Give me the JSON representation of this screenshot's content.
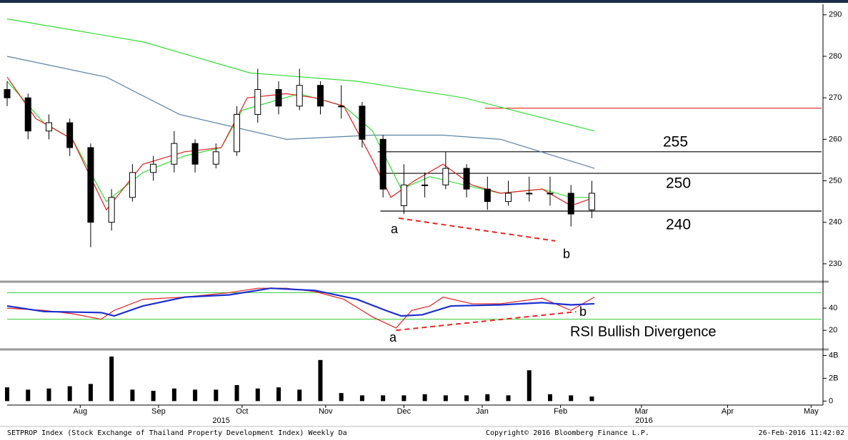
{
  "chart_data": [
    {
      "type": "candlestick",
      "x": [
        0,
        8,
        16,
        24,
        32,
        40,
        48,
        56,
        64,
        72,
        80,
        88,
        96,
        104,
        112,
        120,
        128,
        136,
        144,
        152,
        160,
        168,
        176,
        184,
        192,
        200,
        208,
        216,
        224
      ],
      "open": [
        272,
        270,
        262,
        264,
        258,
        240,
        246,
        252,
        254,
        259,
        254,
        257,
        266,
        272,
        268,
        273,
        268,
        268,
        260,
        244,
        249,
        249,
        253,
        248,
        245,
        247,
        247,
        247,
        243
      ],
      "high": [
        274,
        271,
        266,
        265,
        259,
        248,
        254,
        256,
        262,
        260,
        259,
        268,
        277,
        274,
        277,
        274,
        273,
        269,
        261,
        254,
        252,
        257,
        254,
        251,
        250,
        251,
        251,
        249,
        250
      ],
      "low": [
        268,
        260,
        260,
        256,
        234,
        238,
        245,
        250,
        252,
        252,
        253,
        256,
        264,
        266,
        267,
        266,
        265,
        258,
        246,
        242,
        246,
        248,
        246,
        243,
        244,
        245,
        244,
        239,
        241
      ],
      "close": [
        270,
        262,
        264,
        258,
        240,
        246,
        252,
        254,
        259,
        254,
        257,
        266,
        272,
        268,
        273,
        268,
        268,
        260,
        248,
        249,
        249,
        253,
        248,
        245,
        247,
        247,
        247,
        242,
        247
      ],
      "series": [
        {
          "color": "#33dd33",
          "x": [
            0,
            52,
            93,
            134,
            175,
            225
          ],
          "values": [
            289,
            283.5,
            276,
            274,
            270,
            262
          ]
        },
        {
          "color": "#5b82a8",
          "x": [
            0,
            38,
            66,
            107,
            140,
            167,
            189,
            225
          ],
          "values": [
            280,
            275,
            266,
            260,
            261,
            261,
            260,
            253
          ]
        },
        {
          "color": "#33dd33",
          "x": [
            0,
            14,
            25,
            38,
            52,
            68,
            82,
            90,
            112,
            129,
            140,
            151,
            162,
            175,
            189,
            205,
            216,
            225
          ],
          "values": [
            274,
            264,
            260,
            245,
            252,
            256,
            258,
            267,
            271,
            268,
            262,
            248,
            251,
            249,
            247,
            248,
            246,
            246
          ]
        },
        {
          "color": "#e02020",
          "x": [
            0,
            11,
            25,
            38,
            52,
            68,
            82,
            92,
            107,
            118,
            129,
            140,
            147,
            156,
            167,
            178,
            189,
            205,
            216,
            225
          ],
          "values": [
            275,
            265,
            260,
            243,
            254,
            257,
            258,
            270,
            271,
            270,
            268,
            255,
            246,
            250,
            254,
            249,
            247,
            248,
            244,
            246
          ]
        }
      ],
      "levels": [
        {
          "value": 267.5,
          "start": 183,
          "color": "#e02020"
        },
        {
          "value": 257,
          "start": 142,
          "color": "#000000"
        },
        {
          "value": 251.8,
          "start": 143,
          "color": "#000000"
        },
        {
          "value": 242.7,
          "start": 143,
          "color": "#000000"
        }
      ],
      "level_labels": [
        "255",
        "250",
        "240"
      ],
      "divergence": {
        "x": [
          150,
          210
        ],
        "values": [
          241,
          235.5
        ],
        "color": "#ee2222"
      },
      "point_labels": [
        "a",
        "b"
      ],
      "xlim": [
        0,
        312
      ],
      "ylim": [
        226.2,
        292.2
      ],
      "yticks": [
        230,
        240,
        250,
        260,
        270,
        280,
        290
      ]
    },
    {
      "type": "line",
      "series": [
        {
          "color": "#e02020",
          "x": [
            0,
            14,
            25,
            36,
            41,
            52,
            68,
            85,
            96,
            107,
            118,
            129,
            140,
            149,
            155,
            162,
            167,
            178,
            189,
            205,
            216,
            225
          ],
          "values": [
            40,
            38,
            35,
            30,
            38,
            48,
            50,
            54,
            58,
            58,
            55,
            48,
            32,
            22,
            38,
            42,
            50,
            44,
            44,
            49,
            38,
            50
          ]
        },
        {
          "color": "#1a2fd0",
          "x": [
            0,
            14,
            36,
            41,
            52,
            68,
            85,
            101,
            118,
            134,
            145,
            151,
            159,
            170,
            189,
            205,
            216,
            225
          ],
          "values": [
            42,
            37,
            36,
            33,
            42,
            50,
            52,
            58,
            56,
            48,
            38,
            33,
            34,
            42,
            43,
            45,
            43,
            44
          ]
        }
      ],
      "reference_lines": [
        30,
        54
      ],
      "reference_color": "#33cc33",
      "divergence": {
        "x": [
          149,
          218
        ],
        "values": [
          20,
          36.8
        ],
        "color": "#ee2222"
      },
      "point_labels": [
        "a",
        "b"
      ],
      "annotation": "RSI Bullish Divergence",
      "xlim": [
        0,
        312
      ],
      "ylim": [
        4,
        62
      ],
      "yticks": [
        20,
        40
      ]
    },
    {
      "type": "bar",
      "color": "#000000",
      "x": [
        0,
        8,
        16,
        24,
        32,
        40,
        48,
        56,
        64,
        72,
        80,
        88,
        96,
        104,
        112,
        120,
        128,
        136,
        144,
        152,
        160,
        168,
        176,
        184,
        192,
        200,
        208,
        216,
        224
      ],
      "values": [
        1.2,
        1.0,
        1.1,
        1.3,
        1.5,
        3.9,
        1.0,
        0.9,
        1.1,
        1.0,
        1.0,
        1.4,
        1.1,
        1.2,
        1.0,
        3.6,
        0.7,
        0.5,
        0.5,
        0.5,
        0.6,
        0.5,
        0.5,
        0.6,
        0.5,
        2.7,
        0.6,
        0.5,
        0.4
      ],
      "xlim": [
        0,
        312
      ],
      "ylim": [
        -0.35,
        4.4
      ],
      "yticks": [
        0,
        {
          "value": 2,
          "label": "2B"
        },
        {
          "value": 4,
          "label": "4B"
        }
      ],
      "xticks": [
        {
          "value": 28,
          "label": "Aug"
        },
        {
          "value": 58,
          "label": "Sep"
        },
        {
          "value": 90,
          "label": "Oct"
        },
        {
          "value": 122,
          "label": "Nov"
        },
        {
          "value": 152,
          "label": "Dec"
        },
        {
          "value": 182,
          "label": "Jan"
        },
        {
          "value": 212,
          "label": "Feb"
        },
        {
          "value": 243,
          "label": "Mar"
        },
        {
          "value": 276,
          "label": "Apr"
        },
        {
          "value": 308,
          "label": "May"
        }
      ],
      "year_ticks": [
        {
          "value": 82,
          "label": "2015"
        },
        {
          "value": 244,
          "label": "2016"
        }
      ]
    }
  ],
  "footer": {
    "left": "SETPROP Index (Stock Exchange of Thailand Property Development Index) Weekly Da",
    "center": "Copyright© 2016 Bloomberg Finance L.P.",
    "right": "26-Feb-2016 11:42:02"
  }
}
